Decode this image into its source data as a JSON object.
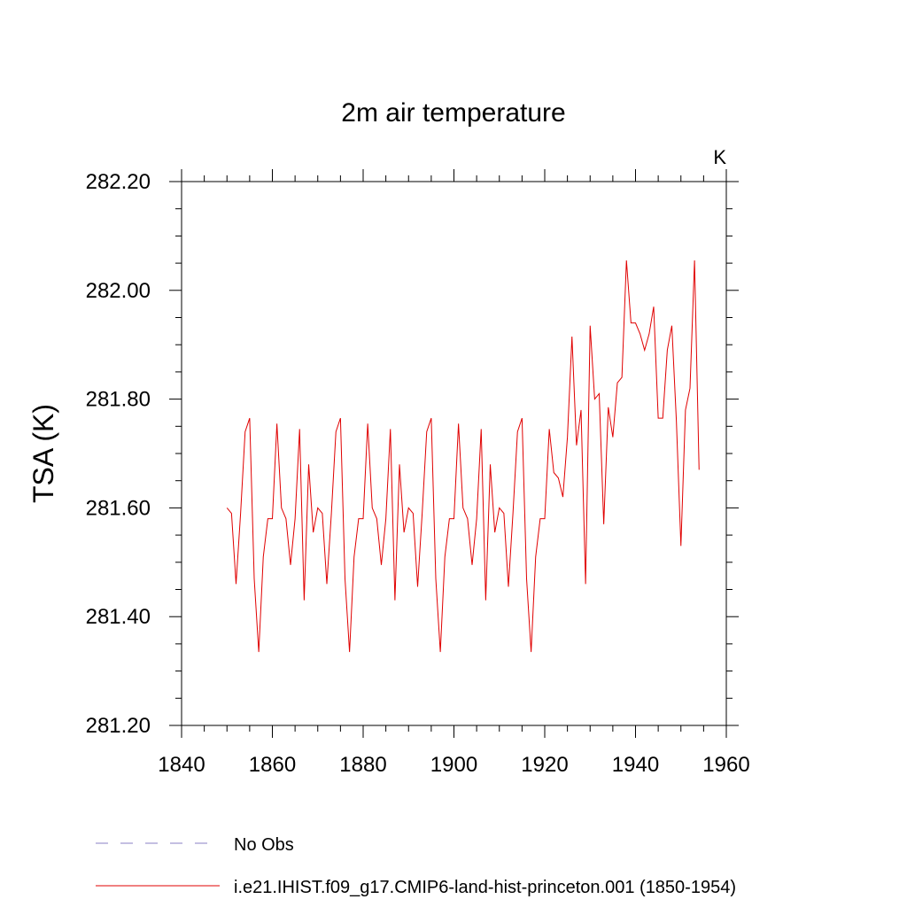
{
  "chart_data": {
    "type": "line",
    "title": "2m air temperature",
    "units": "K",
    "xlabel": "",
    "ylabel": "TSA  (K)",
    "xlim": [
      1840,
      1960
    ],
    "ylim": [
      281.2,
      282.2
    ],
    "x_ticks": [
      "1840",
      "1860",
      "1880",
      "1900",
      "1920",
      "1940",
      "1960"
    ],
    "y_ticks": [
      "281.20",
      "281.40",
      "281.60",
      "281.80",
      "282.00",
      "282.20"
    ],
    "grid": false,
    "legend": [
      {
        "name": "No Obs",
        "style": "dashed",
        "color": "#8a7fc4"
      },
      {
        "name": "i.e21.IHIST.f09_g17.CMIP6-land-hist-princeton.001 (1850-1954)",
        "style": "solid",
        "color": "#e00000"
      }
    ],
    "series": [
      {
        "name": "i.e21.IHIST.f09_g17.CMIP6-land-hist-princeton.001 (1850-1954)",
        "color": "#e00000",
        "x": [
          1850,
          1851,
          1852,
          1853,
          1854,
          1855,
          1856,
          1857,
          1858,
          1859,
          1860,
          1861,
          1862,
          1863,
          1864,
          1865,
          1866,
          1867,
          1868,
          1869,
          1870,
          1871,
          1872,
          1873,
          1874,
          1875,
          1876,
          1877,
          1878,
          1879,
          1880,
          1881,
          1882,
          1883,
          1884,
          1885,
          1886,
          1887,
          1888,
          1889,
          1890,
          1891,
          1892,
          1893,
          1894,
          1895,
          1896,
          1897,
          1898,
          1899,
          1900,
          1901,
          1902,
          1903,
          1904,
          1905,
          1906,
          1907,
          1908,
          1909,
          1910,
          1911,
          1912,
          1913,
          1914,
          1915,
          1916,
          1917,
          1918,
          1919,
          1920,
          1921,
          1922,
          1923,
          1924,
          1925,
          1926,
          1927,
          1928,
          1929,
          1930,
          1931,
          1932,
          1933,
          1934,
          1935,
          1936,
          1937,
          1938,
          1939,
          1940,
          1941,
          1942,
          1943,
          1944,
          1945,
          1946,
          1947,
          1948,
          1949,
          1950,
          1951,
          1952,
          1953,
          1954
        ],
        "y": [
          281.6,
          281.59,
          281.46,
          281.59,
          281.74,
          281.765,
          281.47,
          281.335,
          281.51,
          281.58,
          281.58,
          281.755,
          281.6,
          281.58,
          281.495,
          281.58,
          281.745,
          281.43,
          281.68,
          281.555,
          281.6,
          281.59,
          281.46,
          281.59,
          281.74,
          281.765,
          281.47,
          281.335,
          281.51,
          281.58,
          281.58,
          281.755,
          281.6,
          281.58,
          281.495,
          281.58,
          281.745,
          281.43,
          281.68,
          281.555,
          281.6,
          281.59,
          281.455,
          281.59,
          281.74,
          281.765,
          281.47,
          281.335,
          281.51,
          281.58,
          281.58,
          281.755,
          281.6,
          281.58,
          281.495,
          281.58,
          281.745,
          281.43,
          281.68,
          281.555,
          281.6,
          281.59,
          281.455,
          281.59,
          281.74,
          281.765,
          281.47,
          281.335,
          281.51,
          281.58,
          281.58,
          281.745,
          281.665,
          281.655,
          281.62,
          281.73,
          281.915,
          281.715,
          281.78,
          281.46,
          281.935,
          281.8,
          281.81,
          281.57,
          281.785,
          281.73,
          281.83,
          281.84,
          282.055,
          281.94,
          281.94,
          281.92,
          281.89,
          281.92,
          281.97,
          281.765,
          281.765,
          281.89,
          281.935,
          281.76,
          281.53,
          281.78,
          281.82,
          282.055,
          281.67
        ]
      }
    ]
  }
}
